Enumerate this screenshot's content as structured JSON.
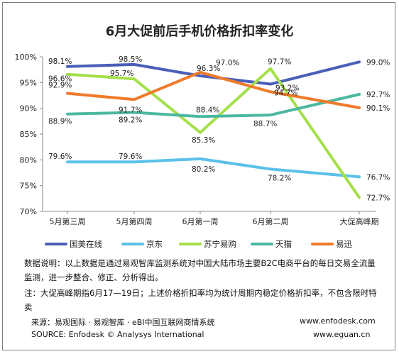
{
  "chart_data": {
    "type": "line",
    "title": "6月大促前后手机价格折扣率变化",
    "categories": [
      "5月第三周",
      "5月第四周",
      "6月第一周",
      "6月第二周",
      "大促高峰期"
    ],
    "y_ticks": [
      "100%",
      "95%",
      "90%",
      "85%",
      "80%",
      "75%",
      "70%"
    ],
    "ylim": [
      70,
      100
    ],
    "grid": false,
    "legend_position": "bottom",
    "series": [
      {
        "name": "国美在线",
        "color": "#4a5fb8",
        "values": [
          98.1,
          98.5,
          96.3,
          94.7,
          99.0
        ],
        "labels": [
          "98.1%",
          "98.5%",
          "96.3%",
          "94.7%",
          "99.0%"
        ]
      },
      {
        "name": "京东",
        "color": "#5bc1e8",
        "values": [
          79.6,
          79.6,
          80.2,
          78.2,
          76.7
        ],
        "labels": [
          "79.6%",
          "79.6%",
          "80.2%",
          "78.2%",
          "76.7%"
        ]
      },
      {
        "name": "苏宁易购",
        "color": "#a3e04a",
        "values": [
          96.6,
          95.7,
          85.3,
          97.7,
          72.7
        ],
        "labels": [
          "96.6%",
          "95.7%",
          "85.3%",
          "97.7%",
          "72.7%"
        ]
      },
      {
        "name": "天猫",
        "color": "#4cb8a0",
        "values": [
          88.9,
          89.2,
          88.4,
          88.7,
          92.7
        ],
        "labels": [
          "88.9%",
          "89.2%",
          "88.4%",
          "88.7%",
          "92.7%"
        ]
      },
      {
        "name": "易迅",
        "color": "#f07a2a",
        "values": [
          92.9,
          91.7,
          97.0,
          93.2,
          90.1
        ],
        "labels": [
          "92.9%",
          "91.7%",
          "97.0%",
          "93.2%",
          "90.1%"
        ]
      }
    ]
  },
  "notes": {
    "line1": "数据说明：以上数据是通过易观智库监测系统对中国大陆市场主要B2C电商平台的每日交易全流量监测，进一步整合、修正、分析得出。",
    "line2": "注：大促高峰期指6月17—19日；上述价格折扣率均为统计周期内稳定价格折扣率，不包含限时特卖"
  },
  "footer": {
    "source_cn": "来源：易观国际 · 易观智库 · eBI中国互联网商情系统",
    "source_en": "SOURCE: Enfodesk © Analysys International",
    "url1": "www.enfodesk.com",
    "url2": "www.eguan.cn"
  }
}
